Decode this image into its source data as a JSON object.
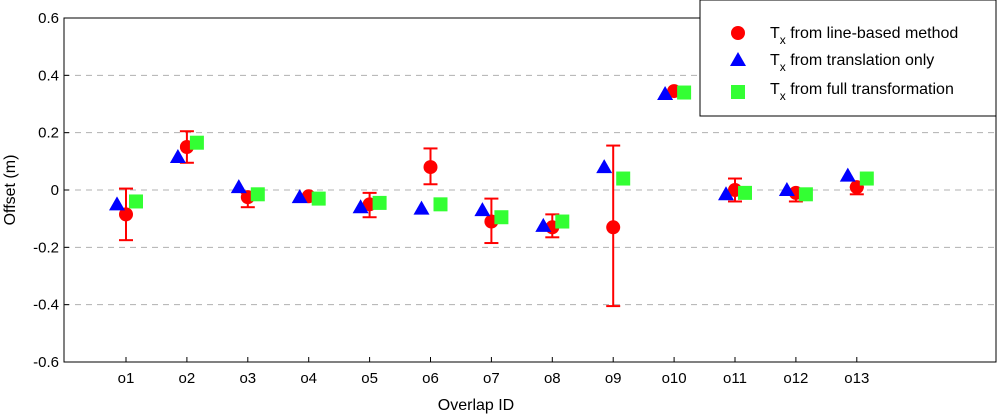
{
  "chart_data": {
    "type": "scatter",
    "xlabel": "Overlap ID",
    "ylabel": "Offset (m)",
    "ylim": [
      -0.6,
      0.6
    ],
    "yticks": [
      "0.6",
      "0.4",
      "0.2",
      "0",
      "-0.2",
      "-0.4",
      "-0.6"
    ],
    "ytick_values": [
      0.6,
      0.4,
      0.2,
      0,
      -0.2,
      -0.4,
      -0.6
    ],
    "grid": "horizontal-dashed",
    "legend_position": "top-right",
    "categories": [
      "o1",
      "o2",
      "o3",
      "o4",
      "o5",
      "o6",
      "o7",
      "o8",
      "o9",
      "o10",
      "o11",
      "o12",
      "o13"
    ],
    "series": [
      {
        "name": "line-based",
        "legend": {
          "main": "T",
          "sub": "x",
          "rest": " from line-based method"
        },
        "marker": "circle",
        "color": "#ff0000",
        "values": [
          -0.085,
          0.15,
          -0.025,
          -0.022,
          -0.05,
          0.08,
          -0.11,
          -0.13,
          -0.13,
          0.345,
          0.0,
          -0.01,
          0.01
        ],
        "err_low": [
          -0.175,
          0.095,
          -0.06,
          -0.022,
          -0.095,
          0.02,
          -0.185,
          -0.165,
          -0.405,
          0.345,
          -0.04,
          -0.04,
          -0.015
        ],
        "err_high": [
          0.005,
          0.205,
          -0.01,
          -0.022,
          -0.01,
          0.145,
          -0.03,
          -0.085,
          0.155,
          0.345,
          0.04,
          -0.01,
          0.01
        ]
      },
      {
        "name": "translation-only",
        "legend": {
          "main": "T",
          "sub": "x",
          "rest": " from translation only"
        },
        "marker": "triangle",
        "color": "#0000ff",
        "values": [
          -0.05,
          0.115,
          0.01,
          -0.025,
          -0.06,
          -0.065,
          -0.07,
          -0.125,
          0.08,
          0.335,
          -0.015,
          0.0,
          0.05
        ]
      },
      {
        "name": "full-transformation",
        "legend": {
          "main": "T",
          "sub": "x",
          "rest": " from full transformation"
        },
        "marker": "square",
        "color": "#33ff33",
        "values": [
          -0.04,
          0.165,
          -0.015,
          -0.03,
          -0.045,
          -0.05,
          -0.095,
          -0.11,
          0.04,
          0.34,
          -0.01,
          -0.015,
          0.04
        ]
      }
    ]
  }
}
